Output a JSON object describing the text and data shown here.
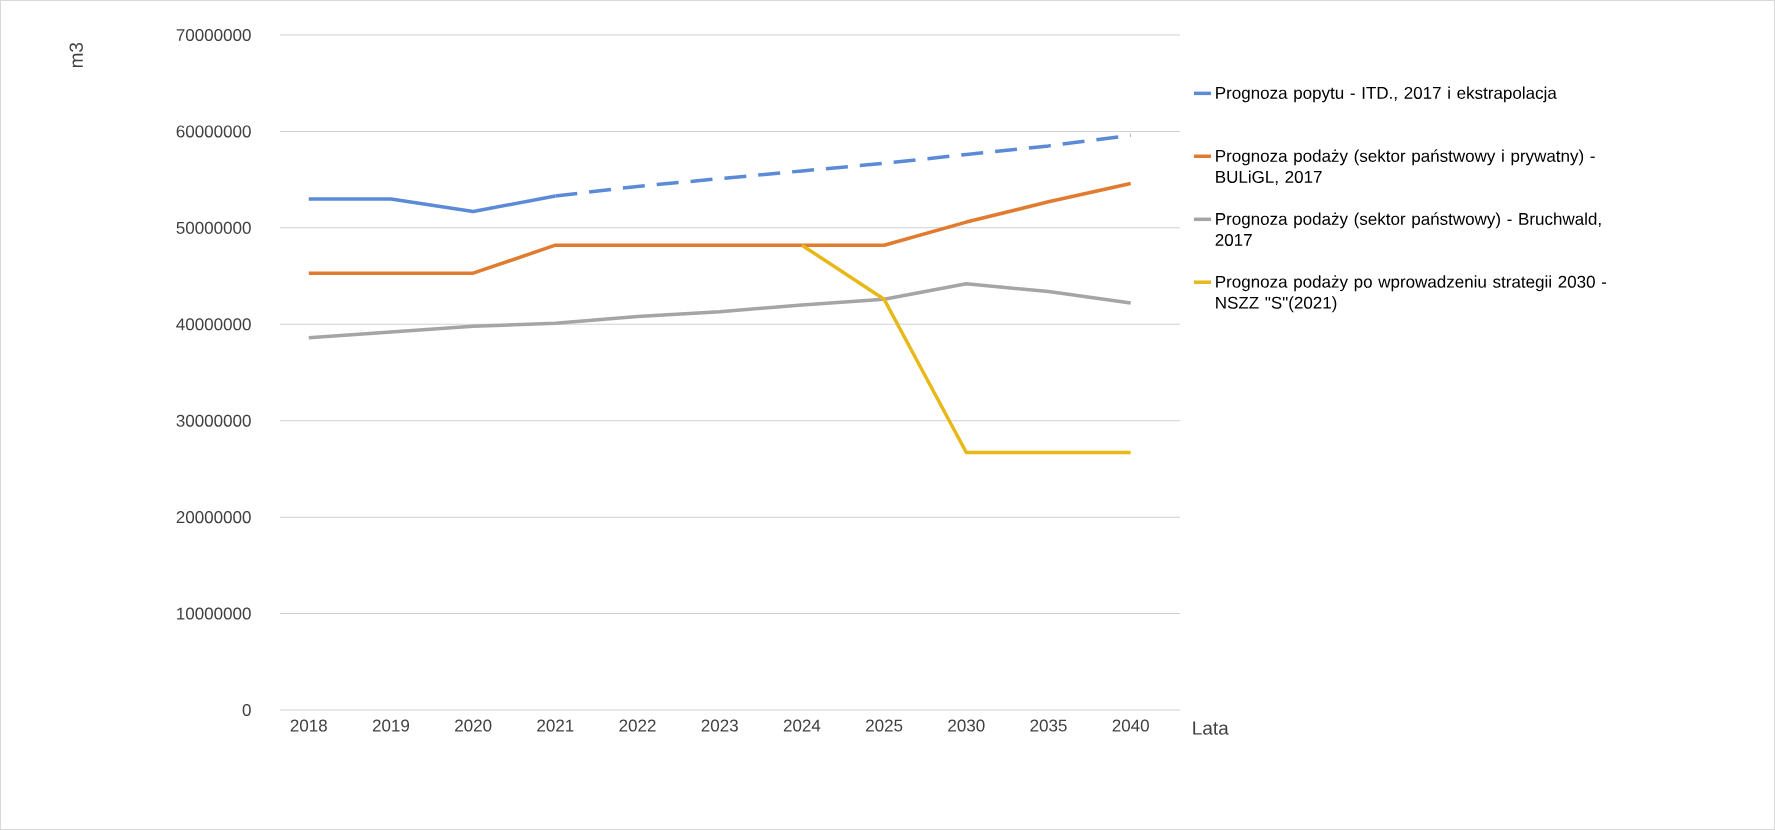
{
  "chart_data": {
    "type": "line",
    "xlabel": "Lata",
    "ylabel": "m3",
    "categories": [
      "2018",
      "2019",
      "2020",
      "2021",
      "2022",
      "2023",
      "2024",
      "2025",
      "2030",
      "2035",
      "2040"
    ],
    "ylim": [
      0,
      70000000
    ],
    "yticks": [
      0,
      10000000,
      20000000,
      30000000,
      40000000,
      50000000,
      60000000,
      70000000
    ],
    "grid": "y",
    "legend": "right",
    "marker": "none",
    "series": [
      {
        "name": "Prognoza popytu - ITD., 2017 i ekstrapolacja",
        "color": "#5b8ad6",
        "line_style": "solid",
        "values": [
          53000000,
          53000000,
          51700000,
          53300000,
          null,
          null,
          null,
          null,
          null,
          null,
          null
        ]
      },
      {
        "color": "#5b8ad6",
        "line_style": "dashed",
        "values": [
          null,
          null,
          null,
          53300000,
          54300000,
          55100000,
          55900000,
          56700000,
          57600000,
          58500000,
          59600000
        ]
      },
      {
        "name": "Prognoza podaży (sektor państwowy i prywatny) - BULiGL, 2017",
        "color": "#e07b30",
        "line_style": "solid",
        "values": [
          45300000,
          45300000,
          45300000,
          48200000,
          48200000,
          48200000,
          48200000,
          48200000,
          50600000,
          52700000,
          54600000
        ]
      },
      {
        "name": "Prognoza podaży (sektor państwowy) - Bruchwald, 2017",
        "color": "#a5a5a5",
        "line_style": "solid",
        "values": [
          38600000,
          39200000,
          39800000,
          40100000,
          40800000,
          41300000,
          42000000,
          42600000,
          44200000,
          43400000,
          42200000
        ]
      },
      {
        "name": "Prognoza podaży po wprowadzeniu strategii 2030 - NSZZ \"S\"(2021)",
        "color": "#e8b818",
        "line_style": "solid",
        "values": [
          null,
          null,
          null,
          null,
          null,
          null,
          48200000,
          42600000,
          26700000,
          26700000,
          26700000
        ]
      }
    ]
  }
}
